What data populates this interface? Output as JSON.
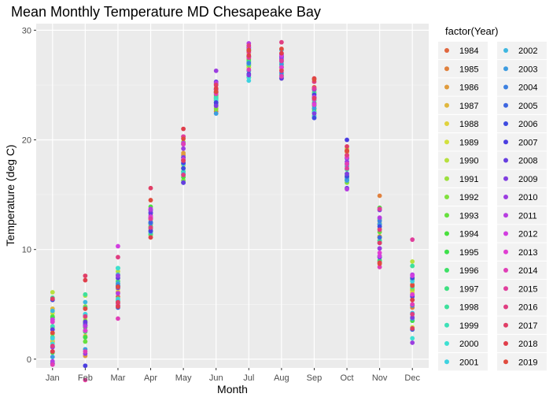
{
  "chart_data": {
    "type": "scatter",
    "title": "Mean Monthly Temperature MD Chesapeake Bay",
    "xlabel": "Month",
    "ylabel": "Temperature (deg C)",
    "categories": [
      "Jan",
      "Feb",
      "Mar",
      "Apr",
      "May",
      "Jun",
      "Jul",
      "Aug",
      "Sep",
      "Oct",
      "Nov",
      "Dec"
    ],
    "y_ticks": [
      0,
      10,
      20,
      30
    ],
    "ylim": [
      -0.8,
      30.6
    ],
    "grid": true,
    "legend": {
      "title": "factor(Year)",
      "placement": "right",
      "entries": [
        "1984",
        "1985",
        "1986",
        "1987",
        "1988",
        "1989",
        "1990",
        "1991",
        "1992",
        "1993",
        "1994",
        "1995",
        "1996",
        "1997",
        "1998",
        "1999",
        "2000",
        "2001",
        "2002",
        "2003",
        "2004",
        "2005",
        "2006",
        "2007",
        "2008",
        "2009",
        "2010",
        "2011",
        "2012",
        "2013",
        "2014",
        "2015",
        "2016",
        "2017",
        "2018",
        "2019"
      ]
    },
    "series": [
      {
        "name": "1984",
        "values": [
          3.8,
          2.6,
          5.7,
          11.9,
          18.1,
          23.6,
          26.6,
          27.3,
          24.8,
          18.6,
          12.3,
          6.8
        ]
      },
      {
        "name": "1985",
        "values": [
          1.6,
          2.0,
          6.6,
          13.1,
          18.6,
          22.6,
          26.8,
          26.9,
          24.6,
          19.0,
          14.9,
          4.7
        ]
      },
      {
        "name": "1986",
        "values": [
          3.4,
          0.3,
          6.1,
          12.3,
          18.8,
          24.3,
          27.6,
          26.4,
          24.2,
          18.9,
          11.2,
          6.3
        ]
      },
      {
        "name": "1987",
        "values": [
          4.6,
          2.1,
          6.9,
          11.3,
          18.4,
          24.4,
          27.4,
          26.6,
          23.9,
          16.6,
          11.9,
          7.4
        ]
      },
      {
        "name": "1988",
        "values": [
          1.7,
          3.3,
          6.4,
          11.1,
          17.7,
          23.1,
          27.9,
          27.7,
          22.8,
          16.4,
          12.4,
          6.1
        ]
      },
      {
        "name": "1989",
        "values": [
          4.2,
          3.8,
          7.1,
          12.7,
          17.4,
          24.6,
          26.6,
          26.4,
          24.4,
          17.6,
          11.1,
          2.9
        ]
      },
      {
        "name": "1990",
        "values": [
          6.1,
          5.8,
          8.0,
          12.4,
          17.1,
          22.9,
          26.3,
          25.8,
          23.1,
          19.2,
          12.7,
          8.9
        ]
      },
      {
        "name": "1991",
        "values": [
          2.3,
          4.8,
          7.7,
          13.6,
          19.8,
          24.1,
          27.2,
          26.9,
          23.6,
          18.4,
          11.1,
          6.4
        ]
      },
      {
        "name": "1992",
        "values": [
          2.9,
          3.5,
          5.1,
          11.4,
          16.3,
          22.8,
          26.8,
          25.6,
          23.2,
          16.1,
          10.8,
          5.4
        ]
      },
      {
        "name": "1993",
        "values": [
          3.9,
          1.6,
          5.3,
          11.7,
          17.8,
          23.7,
          28.1,
          26.7,
          23.4,
          16.9,
          11.6,
          5.9
        ]
      },
      {
        "name": "1994",
        "values": [
          0.6,
          2.9,
          6.7,
          13.9,
          16.6,
          25.1,
          27.3,
          25.9,
          22.8,
          16.4,
          13.8,
          7.3
        ]
      },
      {
        "name": "1995",
        "values": [
          3.8,
          2.0,
          8.3,
          12.1,
          18.2,
          24.0,
          28.3,
          27.6,
          22.6,
          17.8,
          9.0,
          3.5
        ]
      },
      {
        "name": "1996",
        "values": [
          1.1,
          2.5,
          4.9,
          11.6,
          17.1,
          23.8,
          25.7,
          25.9,
          23.1,
          16.3,
          9.4,
          6.6
        ]
      },
      {
        "name": "1997",
        "values": [
          2.0,
          4.7,
          7.1,
          11.4,
          16.1,
          23.4,
          27.1,
          25.7,
          22.2,
          16.4,
          8.9,
          4.1
        ]
      },
      {
        "name": "1998",
        "values": [
          5.6,
          5.9,
          7.4,
          12.4,
          18.4,
          23.9,
          26.9,
          27.1,
          24.3,
          17.3,
          10.8,
          8.5
        ]
      },
      {
        "name": "1999",
        "values": [
          3.0,
          4.0,
          5.5,
          12.0,
          17.1,
          23.8,
          28.2,
          26.6,
          23.6,
          16.4,
          12.8,
          6.6
        ]
      },
      {
        "name": "2000",
        "values": [
          1.4,
          4.1,
          8.3,
          12.4,
          18.4,
          23.6,
          25.7,
          25.7,
          22.1,
          16.9,
          10.1,
          1.9
        ]
      },
      {
        "name": "2001",
        "values": [
          1.9,
          4.1,
          5.4,
          12.4,
          17.8,
          23.4,
          25.4,
          27.5,
          22.5,
          16.4,
          12.3,
          7.1
        ]
      },
      {
        "name": "2002",
        "values": [
          4.4,
          5.2,
          7.7,
          13.6,
          16.9,
          24.6,
          28.4,
          28.2,
          24.6,
          17.6,
          9.3,
          4.2
        ]
      },
      {
        "name": "2003",
        "values": [
          0.2,
          0.9,
          6.9,
          11.6,
          16.8,
          22.4,
          26.3,
          26.9,
          22.9,
          16.3,
          12.3,
          3.7
        ]
      },
      {
        "name": "2004",
        "values": [
          -0.4,
          2.6,
          6.7,
          12.4,
          19.6,
          23.2,
          27.0,
          26.1,
          23.8,
          16.6,
          12.6,
          4.9
        ]
      },
      {
        "name": "2005",
        "values": [
          1.1,
          3.3,
          4.7,
          12.5,
          16.1,
          24.6,
          28.2,
          27.8,
          24.6,
          18.3,
          11.1,
          2.7
        ]
      },
      {
        "name": "2006",
        "values": [
          5.4,
          3.1,
          6.6,
          13.3,
          17.4,
          24.3,
          27.6,
          27.2,
          22.0,
          16.7,
          12.1,
          7.4
        ]
      },
      {
        "name": "2007",
        "values": [
          3.6,
          -0.6,
          6.6,
          11.7,
          17.9,
          23.4,
          26.0,
          27.6,
          24.1,
          20.0,
          10.6,
          5.7
        ]
      },
      {
        "name": "2008",
        "values": [
          2.7,
          3.4,
          7.4,
          13.4,
          16.1,
          25.3,
          27.6,
          25.6,
          23.9,
          15.6,
          9.3,
          5.8
        ]
      },
      {
        "name": "2009",
        "values": [
          -0.4,
          3.1,
          6.5,
          12.9,
          18.4,
          23.1,
          25.9,
          27.7,
          22.4,
          16.9,
          13.6,
          3.8
        ]
      },
      {
        "name": "2010",
        "values": [
          1.1,
          0.5,
          7.6,
          13.6,
          19.2,
          26.3,
          28.4,
          27.4,
          24.6,
          18.0,
          10.1,
          1.5
        ]
      },
      {
        "name": "2011",
        "values": [
          -0.2,
          3.0,
          6.0,
          13.7,
          19.7,
          25.2,
          28.8,
          26.6,
          23.3,
          15.5,
          12.9,
          7.7
        ]
      },
      {
        "name": "2012",
        "values": [
          3.6,
          4.6,
          10.3,
          13.0,
          20.3,
          24.6,
          28.5,
          27.7,
          23.9,
          17.8,
          9.4,
          7.6
        ]
      },
      {
        "name": "2013",
        "values": [
          3.4,
          2.6,
          4.9,
          12.9,
          18.2,
          24.6,
          28.0,
          26.6,
          23.2,
          18.4,
          9.7,
          5.9
        ]
      },
      {
        "name": "2014",
        "values": [
          -0.5,
          0.7,
          3.7,
          12.8,
          19.6,
          24.2,
          26.4,
          25.8,
          23.7,
          17.8,
          8.4,
          5.0
        ]
      },
      {
        "name": "2015",
        "values": [
          0.7,
          -1.9,
          5.1,
          12.8,
          20.3,
          25.0,
          27.5,
          27.2,
          24.7,
          17.4,
          13.7,
          10.9
        ]
      },
      {
        "name": "2016",
        "values": [
          1.2,
          3.9,
          9.3,
          12.0,
          16.8,
          24.4,
          28.6,
          28.9,
          25.3,
          18.6,
          11.8,
          4.1
        ]
      },
      {
        "name": "2017",
        "values": [
          5.5,
          7.6,
          5.2,
          15.6,
          18.1,
          25.0,
          28.1,
          26.3,
          23.8,
          19.4,
          10.6,
          2.8
        ]
      },
      {
        "name": "2018",
        "values": [
          0.7,
          7.2,
          4.8,
          11.1,
          21.0,
          24.7,
          27.7,
          27.9,
          25.6,
          19.0,
          8.8,
          5.4
        ]
      },
      {
        "name": "2019",
        "values": [
          2.4,
          4.6,
          6.6,
          14.5,
          20.1,
          24.4,
          28.2,
          28.3,
          25.5,
          19.0,
          8.7,
          6.7
        ]
      }
    ]
  }
}
